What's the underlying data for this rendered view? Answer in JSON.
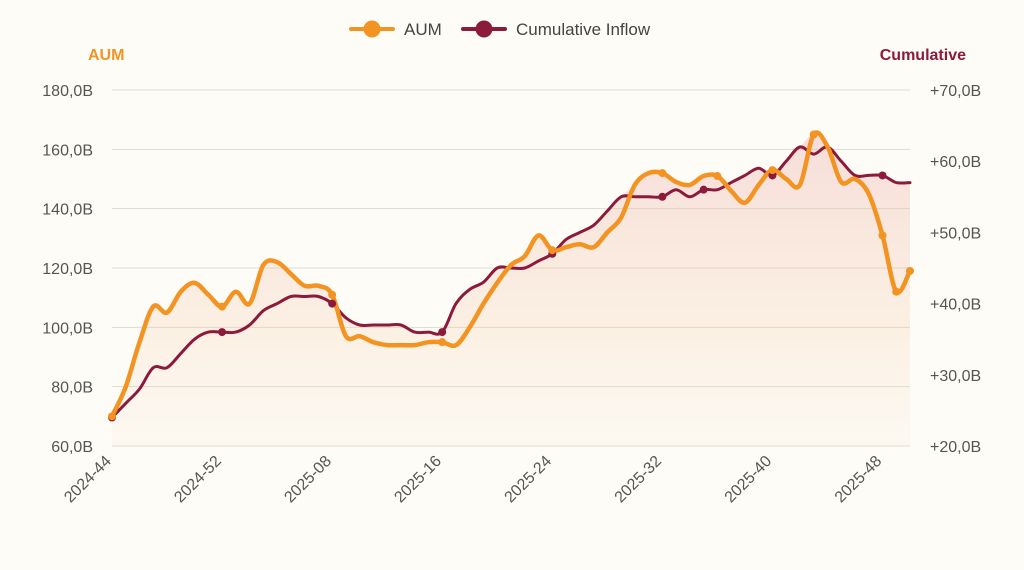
{
  "chart_data": {
    "type": "line",
    "title": "",
    "legend_position": "top",
    "y_left": {
      "title": "AUM",
      "min": 60,
      "max": 180,
      "ticks": [
        60,
        80,
        100,
        120,
        140,
        160,
        180
      ],
      "tick_labels": [
        "60,0B",
        "80,0B",
        "100,0B",
        "120,0B",
        "140,0B",
        "160,0B",
        "180,0B"
      ]
    },
    "y_right": {
      "title": "Cumulative",
      "min": 20,
      "max": 70,
      "ticks": [
        20,
        30,
        40,
        50,
        60,
        70
      ],
      "tick_labels": [
        "+20,0B",
        "+30,0B",
        "+40,0B",
        "+50,0B",
        "+60,0B",
        "+70,0B"
      ]
    },
    "x": {
      "count": 59,
      "ticks": [
        0,
        8,
        16,
        24,
        32,
        40,
        48,
        56
      ],
      "tick_labels": [
        "2024-44",
        "2024-52",
        "2025-08",
        "2025-16",
        "2025-24",
        "2025-32",
        "2025-40",
        "2025-48"
      ]
    },
    "colors": {
      "aum": "#f39322",
      "inflow": "#8b1a3c",
      "grid": "#dedbd2"
    },
    "series": [
      {
        "name": "AUM",
        "axis": "left",
        "color": "#f39322",
        "markers": [
          0,
          8,
          16,
          24,
          32,
          40,
          44,
          48,
          51,
          56,
          57,
          58
        ],
        "values": [
          70,
          80,
          95,
          107,
          105,
          112,
          115,
          111,
          107,
          112,
          108,
          121,
          122,
          118,
          114,
          114,
          111,
          97,
          97,
          95,
          94,
          94,
          94,
          95,
          95,
          94,
          100,
          108,
          115,
          121,
          124,
          131,
          126,
          127,
          128,
          127,
          132,
          137,
          148,
          152,
          152,
          149,
          148,
          151,
          151,
          146,
          142,
          148,
          153,
          150,
          148,
          165,
          161,
          149,
          150,
          145,
          131,
          112,
          119
        ]
      },
      {
        "name": "Cumulative Inflow",
        "axis": "right",
        "color": "#8b1a3c",
        "markers": [
          0,
          8,
          16,
          24,
          32,
          40,
          43,
          48,
          56
        ],
        "values": [
          24,
          26,
          28,
          31,
          31,
          33,
          35,
          36,
          36,
          36,
          37,
          39,
          40,
          41,
          41,
          41,
          40,
          38,
          37,
          37,
          37,
          37,
          36,
          36,
          36,
          40,
          42,
          43,
          45,
          45,
          45,
          46,
          47,
          49,
          50,
          51,
          53,
          55,
          55,
          55,
          55,
          56,
          55,
          56,
          56,
          57,
          58,
          59,
          58,
          60,
          62,
          61,
          62,
          60,
          58,
          58,
          58,
          57,
          57
        ]
      }
    ]
  }
}
